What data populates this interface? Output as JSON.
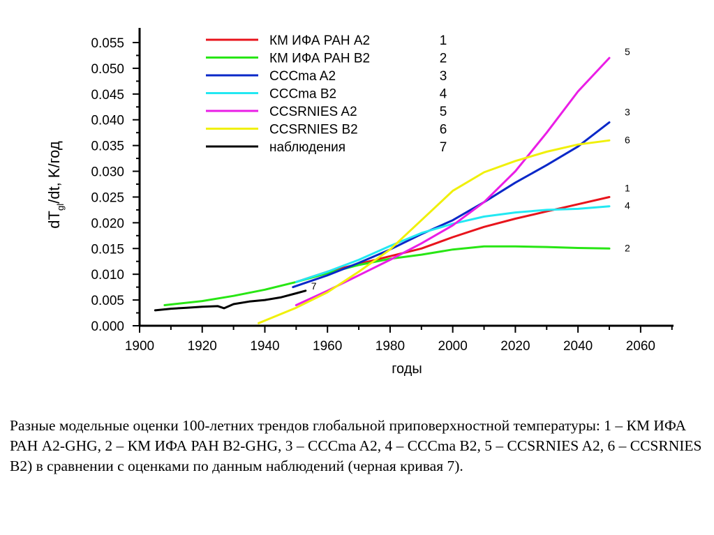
{
  "chart_data": {
    "type": "line",
    "title": "",
    "xlabel": "годы",
    "ylabel": {
      "main": "dT",
      "sub": "gl",
      "rest": "/dt,  K/год"
    },
    "xlim": [
      1900,
      2065
    ],
    "ylim": [
      0,
      0.058
    ],
    "x_ticks": [
      "1900",
      "1920",
      "1940",
      "1960",
      "1980",
      "2000",
      "2020",
      "2040",
      "2060"
    ],
    "y_ticks": [
      "0.000",
      "0.005",
      "0.010",
      "0.015",
      "0.020",
      "0.025",
      "0.030",
      "0.035",
      "0.040",
      "0.045",
      "0.050",
      "0.055"
    ],
    "grid": false,
    "legend_position": "top-left",
    "series": [
      {
        "name": "КМ ИФА РАН А2",
        "number": "1",
        "color": "#e8141c",
        "end_label": "1",
        "x": [
          1950,
          1960,
          1970,
          1980,
          1990,
          2000,
          2010,
          2020,
          2030,
          2040,
          2050
        ],
        "y": [
          0.0085,
          0.0105,
          0.012,
          0.0135,
          0.015,
          0.0172,
          0.0192,
          0.0208,
          0.0222,
          0.0236,
          0.025
        ]
      },
      {
        "name": "КМ ИФА РАН В2",
        "number": "2",
        "color": "#28e614",
        "end_label": "2",
        "x": [
          1908,
          1920,
          1930,
          1940,
          1950,
          1960,
          1970,
          1980,
          1990,
          2000,
          2010,
          2020,
          2030,
          2040,
          2050
        ],
        "y": [
          0.004,
          0.0048,
          0.0058,
          0.007,
          0.0085,
          0.0102,
          0.0118,
          0.013,
          0.0138,
          0.0148,
          0.0154,
          0.0154,
          0.0153,
          0.0151,
          0.015
        ]
      },
      {
        "name": "CCCma A2",
        "number": "3",
        "color": "#0a28c8",
        "end_label": "3",
        "x": [
          1949,
          1960,
          1970,
          1980,
          1990,
          2000,
          2010,
          2020,
          2030,
          2040,
          2050
        ],
        "y": [
          0.0075,
          0.0098,
          0.0122,
          0.0148,
          0.0178,
          0.0205,
          0.024,
          0.0278,
          0.0312,
          0.0348,
          0.0395
        ]
      },
      {
        "name": "CCCma B2",
        "number": "4",
        "color": "#23e8f2",
        "end_label": "4",
        "x": [
          1950,
          1960,
          1970,
          1980,
          1990,
          2000,
          2010,
          2020,
          2030,
          2040,
          2050
        ],
        "y": [
          0.0085,
          0.0105,
          0.0128,
          0.0155,
          0.018,
          0.0198,
          0.0212,
          0.022,
          0.0225,
          0.0227,
          0.0232
        ]
      },
      {
        "name": "CCSRNIES A2",
        "number": "5",
        "color": "#ea1ee6",
        "end_label": "5",
        "x": [
          1950,
          1960,
          1970,
          1980,
          1990,
          2000,
          2010,
          2020,
          2030,
          2040,
          2050
        ],
        "y": [
          0.004,
          0.0068,
          0.0098,
          0.0128,
          0.016,
          0.0195,
          0.024,
          0.03,
          0.0375,
          0.0455,
          0.052
        ]
      },
      {
        "name": "CCSRNIES B2",
        "number": "6",
        "color": "#f0f00a",
        "end_label": "6",
        "x": [
          1938,
          1950,
          1960,
          1970,
          1980,
          1990,
          2000,
          2010,
          2020,
          2030,
          2040,
          2050
        ],
        "y": [
          0.0005,
          0.0035,
          0.0065,
          0.0105,
          0.0148,
          0.0205,
          0.0262,
          0.0298,
          0.032,
          0.0338,
          0.0352,
          0.036
        ]
      },
      {
        "name": "наблюдения",
        "number": "7",
        "color": "#000000",
        "end_label": "7",
        "x": [
          1905,
          1910,
          1915,
          1920,
          1925,
          1927,
          1930,
          1935,
          1940,
          1945,
          1950,
          1953
        ],
        "y": [
          0.003,
          0.0033,
          0.0035,
          0.0037,
          0.0038,
          0.0034,
          0.0042,
          0.0047,
          0.005,
          0.0055,
          0.0063,
          0.0068
        ]
      }
    ]
  },
  "caption": "Разные модельные оценки 100-летних трендов глобальной приповерхностной температуры: 1 – КМ ИФА РАН А2-GHG, 2 – КМ ИФА РАН В2-GHG, 3 – CCCma A2, 4 – CCCma B2, 5 – CCSRNIES A2, 6 – CCSRNIES B2) в сравнении с оценками по данным наблюдений (черная кривая 7)."
}
